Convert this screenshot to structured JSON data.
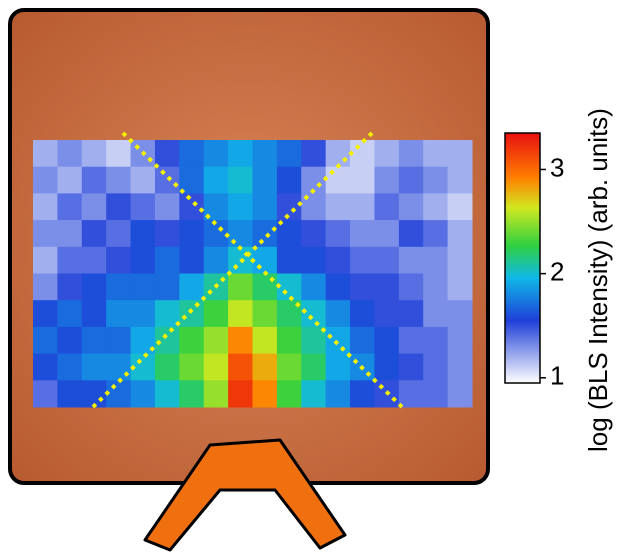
{
  "chart_data": {
    "type": "heatmap",
    "colorbar_label": "log (BLS Intensity) (arb. units)",
    "zlim": [
      0.95,
      3.35
    ],
    "zticks": [
      1,
      2,
      3
    ],
    "z": [
      [
        1.2,
        1.3,
        1.2,
        1.1,
        1.3,
        1.5,
        1.7,
        1.8,
        1.9,
        1.8,
        1.7,
        1.5,
        1.2,
        1.1,
        1.2,
        1.3,
        1.2,
        1.2
      ],
      [
        1.3,
        1.2,
        1.4,
        1.3,
        1.2,
        1.4,
        1.7,
        1.9,
        2.0,
        1.8,
        1.6,
        1.3,
        1.1,
        1.1,
        1.3,
        1.4,
        1.3,
        1.2
      ],
      [
        1.2,
        1.4,
        1.3,
        1.5,
        1.4,
        1.3,
        1.5,
        1.8,
        1.9,
        1.8,
        1.5,
        1.3,
        1.2,
        1.2,
        1.4,
        1.3,
        1.2,
        1.1
      ],
      [
        1.3,
        1.3,
        1.5,
        1.4,
        1.6,
        1.5,
        1.6,
        1.7,
        1.8,
        1.7,
        1.6,
        1.5,
        1.4,
        1.3,
        1.3,
        1.5,
        1.4,
        1.2
      ],
      [
        1.2,
        1.4,
        1.4,
        1.5,
        1.6,
        1.7,
        1.6,
        1.8,
        2.0,
        1.9,
        1.6,
        1.6,
        1.5,
        1.4,
        1.4,
        1.3,
        1.3,
        1.2
      ],
      [
        1.3,
        1.5,
        1.6,
        1.7,
        1.7,
        1.7,
        1.9,
        2.1,
        2.4,
        2.2,
        2.0,
        1.8,
        1.6,
        1.5,
        1.5,
        1.4,
        1.3,
        1.2
      ],
      [
        1.6,
        1.7,
        1.6,
        1.8,
        1.8,
        2.0,
        2.1,
        2.3,
        2.6,
        2.4,
        2.2,
        2.0,
        1.8,
        1.6,
        1.5,
        1.5,
        1.3,
        1.3
      ],
      [
        1.7,
        1.6,
        1.7,
        1.7,
        1.9,
        2.1,
        2.3,
        2.5,
        2.9,
        2.6,
        2.3,
        2.1,
        1.9,
        1.7,
        1.6,
        1.4,
        1.4,
        1.3
      ],
      [
        1.6,
        1.7,
        1.8,
        1.8,
        2.0,
        2.2,
        2.4,
        2.6,
        3.1,
        2.8,
        2.4,
        2.2,
        1.9,
        1.8,
        1.6,
        1.5,
        1.4,
        1.3
      ],
      [
        1.4,
        1.6,
        1.6,
        1.7,
        1.8,
        2.0,
        2.2,
        2.5,
        3.2,
        2.9,
        2.3,
        2.0,
        1.8,
        1.6,
        1.5,
        1.4,
        1.4,
        1.3
      ]
    ]
  }
}
